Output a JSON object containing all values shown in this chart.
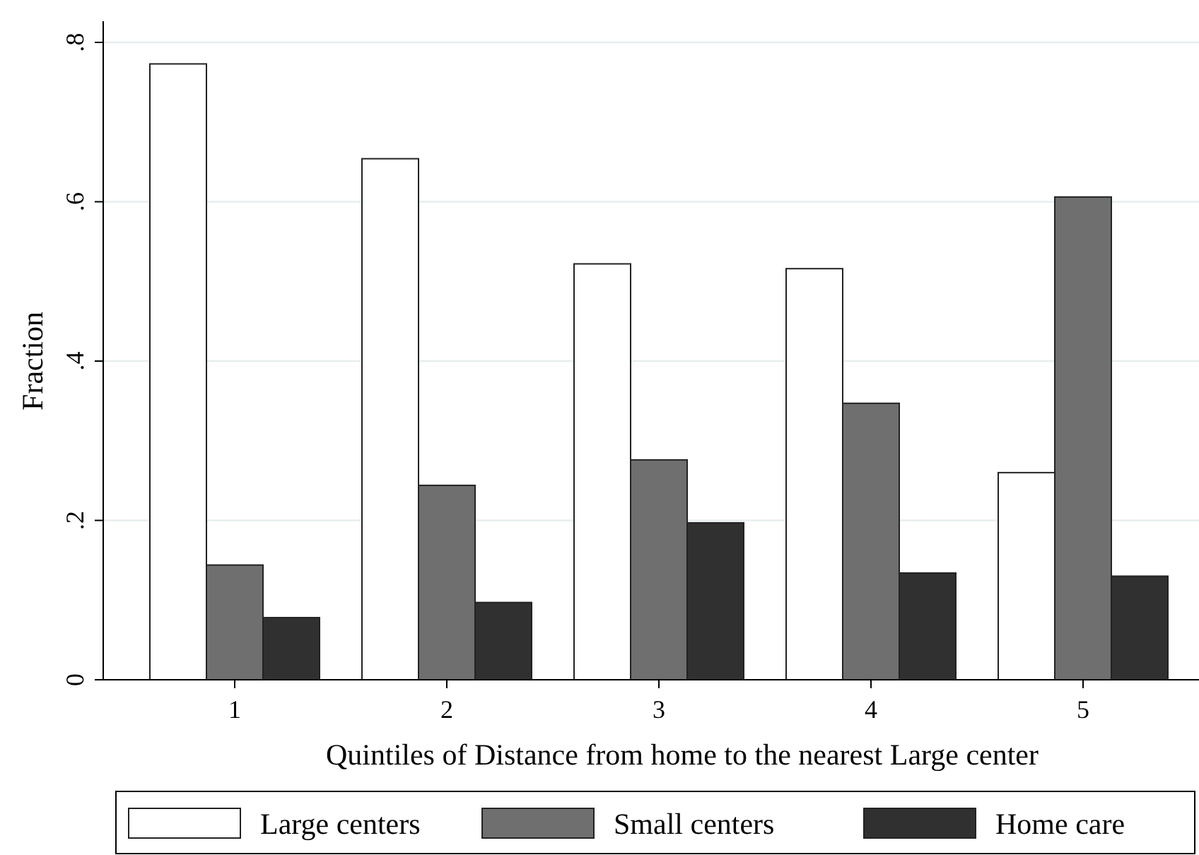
{
  "chart_data": {
    "type": "bar",
    "xlabel": "Quintiles of Distance from home to the nearest Large center",
    "ylabel": "Fraction",
    "categories": [
      "1",
      "2",
      "3",
      "4",
      "5"
    ],
    "series": [
      {
        "name": "Large centers",
        "color": "#ffffff",
        "values": [
          0.773,
          0.654,
          0.522,
          0.516,
          0.26
        ]
      },
      {
        "name": "Small centers",
        "color": "#6f6f6f",
        "values": [
          0.144,
          0.244,
          0.276,
          0.347,
          0.606
        ]
      },
      {
        "name": "Home care",
        "color": "#303030",
        "values": [
          0.078,
          0.097,
          0.197,
          0.134,
          0.13
        ]
      }
    ],
    "ylim": [
      0,
      0.8
    ],
    "yticks": [
      {
        "value": 0,
        "label": "0"
      },
      {
        "value": 0.2,
        "label": ".2"
      },
      {
        "value": 0.4,
        "label": ".4"
      },
      {
        "value": 0.6,
        "label": ".6"
      },
      {
        "value": 0.8,
        "label": ".8"
      }
    ],
    "grid": "y",
    "legend": "bottom"
  }
}
